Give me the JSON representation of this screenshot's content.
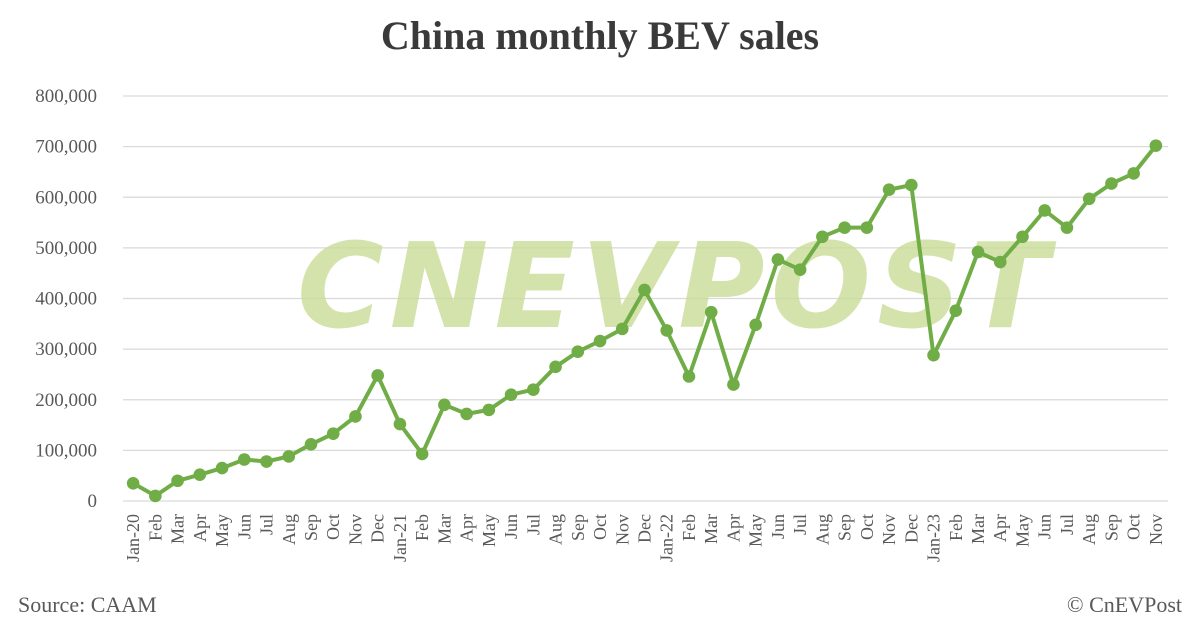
{
  "chart_data": {
    "type": "line",
    "title": "China monthly BEV sales",
    "xlabel": "",
    "ylabel": "",
    "ylim": [
      0,
      800000
    ],
    "y_ticks": [
      "0",
      "100,000",
      "200,000",
      "300,000",
      "400,000",
      "500,000",
      "600,000",
      "700,000",
      "800,000"
    ],
    "grid": true,
    "legend": "none",
    "categories": [
      "Jan-20",
      "Feb",
      "Mar",
      "Apr",
      "May",
      "Jun",
      "Jul",
      "Aug",
      "Sep",
      "Oct",
      "Nov",
      "Dec",
      "Jan-21",
      "Feb",
      "Mar",
      "Apr",
      "May",
      "Jun",
      "Jul",
      "Aug",
      "Sep",
      "Oct",
      "Nov",
      "Dec",
      "Jan-22",
      "Feb",
      "Mar",
      "Apr",
      "May",
      "Jun",
      "Jul",
      "Aug",
      "Sep",
      "Oct",
      "Nov",
      "Dec",
      "Jan-23",
      "Feb",
      "Mar",
      "Apr",
      "May",
      "Jun",
      "Jul",
      "Aug",
      "Sep",
      "Oct",
      "Nov"
    ],
    "series": [
      {
        "color": "#70ad47",
        "values": [
          35000,
          10000,
          40000,
          52000,
          65000,
          82000,
          78000,
          88000,
          112000,
          133000,
          167000,
          248000,
          152000,
          93000,
          190000,
          172000,
          180000,
          210000,
          220000,
          265000,
          295000,
          316000,
          340000,
          417000,
          337000,
          246000,
          373000,
          230000,
          348000,
          477000,
          457000,
          522000,
          540000,
          540000,
          615000,
          624000,
          288000,
          376000,
          492000,
          472000,
          522000,
          574000,
          540000,
          597000,
          627000,
          647000,
          702000
        ]
      }
    ]
  },
  "watermark": "CNEVPOST",
  "footer": {
    "source": "Source: CAAM",
    "credit": "© CnEVPost"
  }
}
